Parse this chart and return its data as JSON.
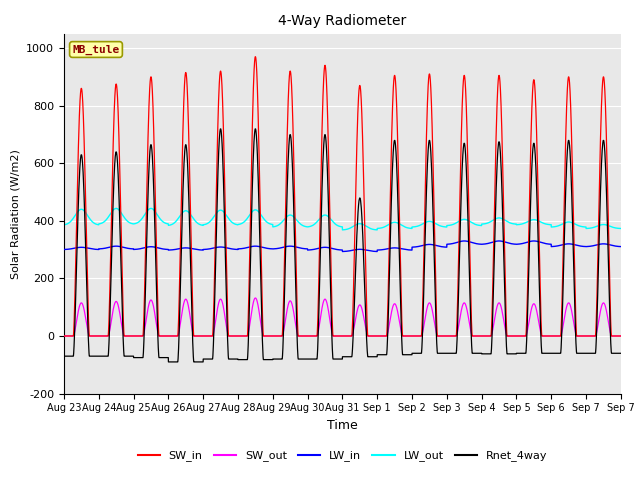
{
  "title": "4-Way Radiometer",
  "xlabel": "Time",
  "ylabel": "Solar Radiation (W/m2)",
  "ylim": [
    -200,
    1050
  ],
  "xlim_days": 16,
  "station_label": "MB_tule",
  "x_tick_labels": [
    "Aug 23",
    "Aug 24",
    "Aug 25",
    "Aug 26",
    "Aug 27",
    "Aug 28",
    "Aug 29",
    "Aug 30",
    "Aug 31",
    "Sep 1",
    "Sep 2",
    "Sep 3",
    "Sep 4",
    "Sep 5",
    "Sep 6",
    "Sep 7",
    "Sep 7"
  ],
  "legend_entries": [
    "SW_in",
    "SW_out",
    "LW_in",
    "LW_out",
    "Rnet_4way"
  ],
  "colors": {
    "SW_in": "#FF0000",
    "SW_out": "#FF00FF",
    "LW_in": "#0000FF",
    "LW_out": "#00FFFF",
    "Rnet_4way": "#000000"
  },
  "background_color": "#E8E8E8",
  "SW_in_peaks": [
    860,
    875,
    900,
    915,
    920,
    970,
    920,
    940,
    870,
    905,
    910,
    905,
    905,
    890,
    900,
    900
  ],
  "SW_out_peaks": [
    115,
    120,
    125,
    128,
    128,
    132,
    122,
    128,
    108,
    112,
    115,
    115,
    115,
    112,
    115,
    115
  ],
  "LW_in_base": [
    300,
    302,
    300,
    298,
    300,
    302,
    302,
    298,
    293,
    298,
    308,
    318,
    318,
    318,
    310,
    310
  ],
  "LW_in_amp": [
    8,
    10,
    10,
    8,
    9,
    10,
    10,
    10,
    8,
    8,
    10,
    12,
    12,
    12,
    10,
    10
  ],
  "LW_out_base": [
    385,
    388,
    388,
    383,
    385,
    386,
    378,
    378,
    368,
    373,
    378,
    383,
    388,
    386,
    378,
    373
  ],
  "LW_out_amp": [
    55,
    55,
    55,
    52,
    52,
    52,
    42,
    42,
    22,
    22,
    20,
    22,
    22,
    18,
    18,
    14
  ],
  "Rnet_peaks": [
    630,
    640,
    665,
    665,
    720,
    720,
    700,
    700,
    480,
    680,
    680,
    670,
    675,
    670,
    680,
    680
  ],
  "Rnet_night": [
    -70,
    -70,
    -75,
    -90,
    -80,
    -82,
    -80,
    -80,
    -72,
    -65,
    -60,
    -60,
    -62,
    -60,
    -60,
    -60
  ]
}
